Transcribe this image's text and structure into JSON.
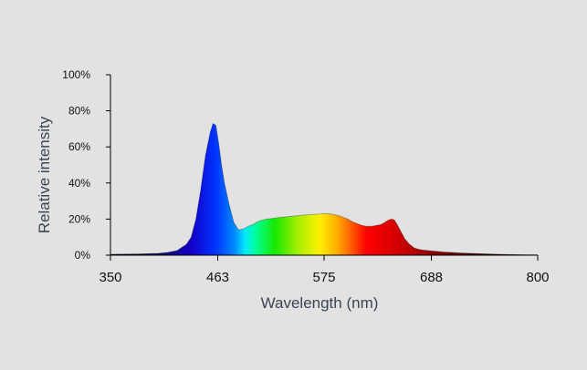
{
  "chart_data": {
    "type": "area",
    "title": "",
    "xlabel": "Wavelength (nm)",
    "ylabel": "Relative intensity",
    "x_ticks": [
      350,
      463,
      575,
      688,
      800
    ],
    "y_ticks": [
      "0%",
      "20%",
      "40%",
      "60%",
      "80%",
      "100%"
    ],
    "xlim": [
      350,
      800
    ],
    "ylim": [
      0,
      100
    ],
    "grid": false,
    "fill": "spectral-rainbow",
    "series": [
      {
        "x": [
          350,
          380,
          400,
          410,
          420,
          430,
          435,
          440,
          445,
          450,
          455,
          458,
          461,
          464,
          467,
          470,
          475,
          480,
          485,
          490,
          495,
          500,
          505,
          510,
          515,
          520,
          525,
          530,
          540,
          550,
          560,
          570,
          575,
          580,
          585,
          590,
          595,
          600,
          605,
          610,
          615,
          620,
          625,
          630,
          635,
          640,
          643,
          646,
          649,
          652,
          655,
          660,
          665,
          670,
          675,
          680,
          690,
          700,
          720,
          740,
          760,
          780,
          800
        ],
        "y": [
          0.5,
          0.7,
          1,
          1.5,
          2.5,
          6,
          10,
          20,
          36,
          55,
          68,
          73,
          72,
          62,
          50,
          40,
          28,
          18,
          14,
          14.5,
          16,
          17,
          18.5,
          19.5,
          20,
          20.3,
          20.7,
          21,
          21.5,
          22,
          22.5,
          22.8,
          23,
          23,
          22.5,
          22,
          21,
          20,
          18.5,
          17.5,
          16.5,
          16,
          16,
          16.5,
          17,
          18.5,
          19.5,
          20,
          19.5,
          17,
          14,
          9,
          6,
          4,
          3.2,
          2.8,
          2.3,
          1.8,
          1.2,
          0.8,
          0.5,
          0.3,
          0.2
        ]
      }
    ]
  }
}
